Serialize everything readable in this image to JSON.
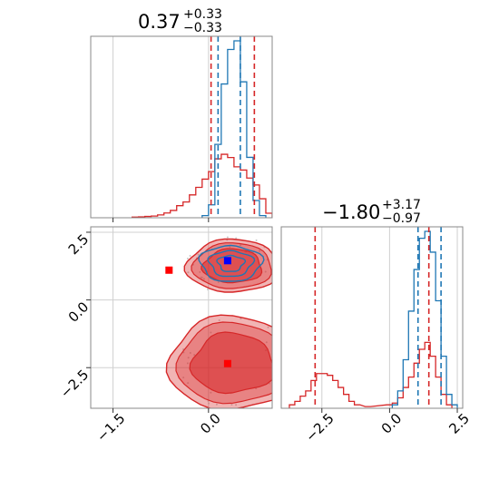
{
  "chart_data": {
    "type": "corner",
    "colors": {
      "red": "#d62728",
      "blue": "#1f77b4",
      "grid": "#d0d0d0",
      "frame": "#888888"
    },
    "parameters": [
      {
        "title_value": "0.37",
        "title_plus": "+0.33",
        "title_minus": "−0.33",
        "xlim": [
          -1.85,
          1.0
        ],
        "ticks": [
          -1.5,
          0.0
        ],
        "tick_labels": [
          "−1.5",
          "0.0"
        ]
      },
      {
        "title_value": "−1.80",
        "title_plus": "+3.17",
        "title_minus": "−0.97",
        "xlim": [
          -4.0,
          2.7
        ],
        "ticks": [
          -2.5,
          0.0,
          2.5
        ],
        "tick_labels": [
          "−2.5",
          "0.0",
          "2.5"
        ]
      }
    ],
    "joint": {
      "ylim": [
        -4.0,
        2.7
      ],
      "yticks": [
        2.5,
        0.0,
        -2.5
      ],
      "ytick_labels": [
        "2.5",
        "0.0",
        "−2.5"
      ],
      "markers": [
        {
          "series": "red",
          "x": -0.62,
          "y": 1.1
        },
        {
          "series": "red",
          "x": 0.3,
          "y": -2.35
        },
        {
          "series": "blue",
          "x": 0.3,
          "y": 1.45
        }
      ],
      "red_modes": [
        {
          "cx": 0.38,
          "cy": 1.25,
          "sx": 0.3,
          "sy": 0.42,
          "ry_ratio": 0.68
        },
        {
          "cx": 0.38,
          "cy": -2.35,
          "sx": 0.42,
          "sy": 0.7,
          "ry_ratio": 0.72
        }
      ],
      "blue_mode": {
        "cx": 0.35,
        "cy": 1.35,
        "sx": 0.22,
        "sy": 0.3
      }
    },
    "hist1": {
      "red": {
        "x": [
          -1.15,
          -1.05,
          -0.95,
          -0.85,
          -0.75,
          -0.65,
          -0.55,
          -0.45,
          -0.35,
          -0.25,
          -0.15,
          -0.05,
          0.05,
          0.15,
          0.25,
          0.35,
          0.45,
          0.55,
          0.65,
          0.75,
          0.85,
          0.95
        ],
        "y": [
          0.3,
          0.4,
          0.6,
          0.8,
          1.3,
          2.2,
          3.4,
          5.6,
          7.3,
          10.6,
          14.1,
          17.9,
          21.4,
          27.3,
          29.4,
          27.9,
          23.6,
          22.1,
          18.4,
          15.2,
          8.8,
          2.1
        ]
      },
      "blue": {
        "x": [
          -0.05,
          0.05,
          0.15,
          0.25,
          0.35,
          0.45,
          0.55,
          0.65,
          0.75,
          0.85
        ],
        "y": [
          1.0,
          6.0,
          34.0,
          62.0,
          78.0,
          82.0,
          63.0,
          28.0,
          8.0,
          1.0
        ]
      },
      "red_lines": [
        0.04,
        0.72
      ],
      "blue_lines": [
        0.15,
        0.5
      ]
    },
    "hist2": {
      "red": {
        "x": [
          -3.6,
          -3.4,
          -3.2,
          -3.0,
          -2.8,
          -2.6,
          -2.4,
          -2.2,
          -2.0,
          -1.8,
          -1.6,
          -1.4,
          -1.2,
          -0.8,
          0.0,
          0.2,
          0.4,
          0.6,
          0.8,
          1.0,
          1.2,
          1.4,
          1.6,
          1.8,
          2.0,
          2.2
        ],
        "y": [
          2,
          4,
          7,
          10,
          16,
          20,
          20,
          19,
          16,
          12,
          8,
          4,
          2,
          1,
          2,
          3,
          6,
          12,
          18,
          26,
          34,
          38,
          30,
          18,
          8,
          2
        ]
      },
      "blue": {
        "x": [
          0.2,
          0.4,
          0.6,
          0.8,
          1.0,
          1.2,
          1.4,
          1.6,
          1.8,
          2.0,
          2.2,
          2.4
        ],
        "y": [
          2,
          10,
          28,
          56,
          80,
          98,
          102,
          90,
          62,
          30,
          8,
          2
        ]
      },
      "red_lines": [
        -2.75,
        1.45
      ],
      "blue_lines": [
        1.05,
        1.9
      ]
    }
  }
}
